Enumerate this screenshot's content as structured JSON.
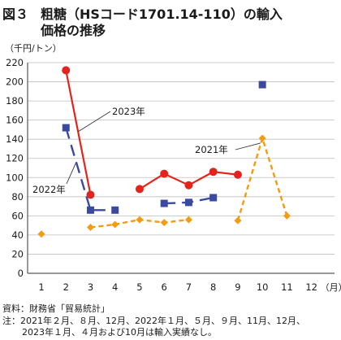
{
  "figure": {
    "number": "図３",
    "title_line1": "粗糖（HSコード1701.14-110）の輸入",
    "title_line2": "価格の推移"
  },
  "chart_data": {
    "type": "line",
    "ylabel": "（千円/トン）",
    "xunit": "（月）",
    "ylim": [
      0,
      220
    ],
    "yticks": [
      0,
      20,
      40,
      60,
      80,
      100,
      120,
      140,
      160,
      180,
      200,
      220
    ],
    "x": [
      1,
      2,
      3,
      4,
      5,
      6,
      7,
      8,
      9,
      10,
      11,
      12
    ],
    "x_tick_labels": [
      "1",
      "2",
      "3",
      "4",
      "5",
      "6",
      "7",
      "8",
      "9",
      "10",
      "11",
      "12"
    ],
    "grid": "horizontal",
    "series": [
      {
        "name": "2021年",
        "color": "#f39c12",
        "style": "dashed",
        "marker": "diamond",
        "values": [
          41,
          null,
          48,
          51,
          56,
          53,
          56,
          null,
          55,
          141,
          60,
          null
        ]
      },
      {
        "name": "2022年",
        "color": "#3a4aa0",
        "style": "long-dash",
        "marker": "square",
        "values": [
          null,
          152,
          66,
          66,
          null,
          73,
          74,
          79,
          null,
          197,
          null,
          null
        ]
      },
      {
        "name": "2023年",
        "color": "#e3231c",
        "style": "solid",
        "marker": "circle",
        "values": [
          null,
          212,
          82,
          null,
          88,
          104,
          92,
          106,
          103,
          null,
          null,
          null
        ]
      }
    ]
  },
  "footer": {
    "source": "資料：財務省「貿易統計」",
    "note_line1": "注：2021年２月、８月、12月、2022年１月、５月、９月、11月、12月、",
    "note_line2": "2023年１月、４月および10月は輸入実績なし。"
  }
}
